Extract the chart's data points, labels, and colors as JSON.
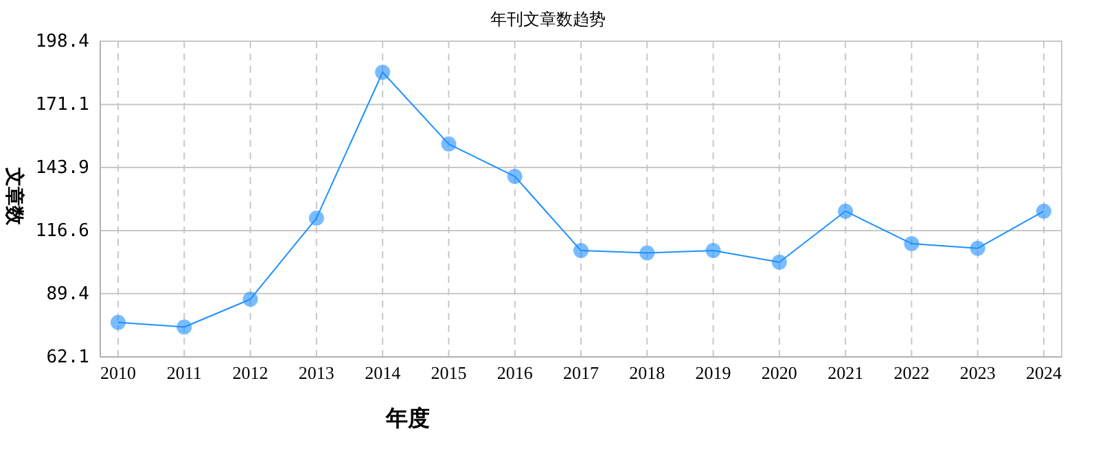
{
  "chart_data": {
    "type": "line",
    "title": "年刊文章数趋势",
    "xlabel": "年度",
    "ylabel": "文章数",
    "categories": [
      "2010",
      "2011",
      "2012",
      "2013",
      "2014",
      "2015",
      "2016",
      "2017",
      "2018",
      "2019",
      "2020",
      "2021",
      "2022",
      "2023",
      "2024"
    ],
    "series": [
      {
        "color": "#1e90ff",
        "values": [
          77,
          75,
          87,
          122,
          185,
          154,
          140,
          108,
          107,
          108,
          103,
          125,
          111,
          109,
          125
        ]
      }
    ],
    "ylim": [
      62.1,
      198.4
    ],
    "yticks": [
      62.1,
      89.4,
      116.6,
      143.9,
      171.1,
      198.4
    ],
    "grid": true,
    "marker": "circle",
    "line_style": "solid"
  }
}
